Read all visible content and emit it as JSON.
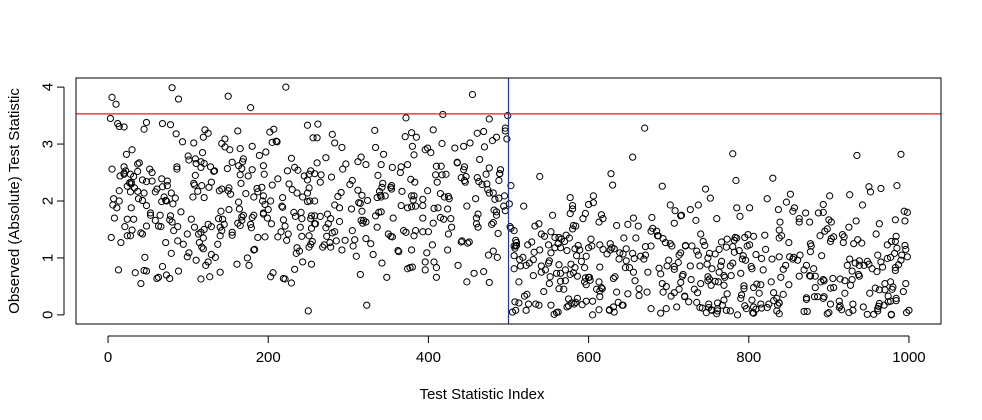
{
  "chart_data": {
    "type": "scatter",
    "title": "",
    "xlabel": "Test Statistic Index",
    "ylabel": "Observed (Absolute) Test Statistic",
    "xlim": [
      -40,
      1040
    ],
    "ylim": [
      -0.16,
      4.16
    ],
    "x_ticks": [
      0,
      200,
      400,
      600,
      800,
      1000
    ],
    "y_ticks": [
      0,
      1,
      2,
      3,
      4
    ],
    "x_tick_labels": [
      "0",
      "200",
      "400",
      "600",
      "800",
      "1000"
    ],
    "y_tick_labels": [
      "0",
      "1",
      "2",
      "3",
      "4"
    ],
    "grid": false,
    "legend": "none",
    "marker": "open-circle",
    "reference_lines": [
      {
        "orientation": "horizontal",
        "value": 3.53,
        "color": "#e8191f"
      },
      {
        "orientation": "vertical",
        "value": 500,
        "color": "#1f2fd6"
      }
    ],
    "series": [
      {
        "color": "#000000",
        "points": [
          {
            "x": 3,
            "y": 3.45
          },
          {
            "x": 5,
            "y": 3.82
          },
          {
            "x": 10,
            "y": 3.7
          },
          {
            "x": 80,
            "y": 3.99
          },
          {
            "x": 88,
            "y": 3.79
          },
          {
            "x": 150,
            "y": 3.84
          },
          {
            "x": 178,
            "y": 3.64
          },
          {
            "x": 222,
            "y": 4.0
          },
          {
            "x": 455,
            "y": 3.87
          },
          {
            "x": 12,
            "y": 3.36
          },
          {
            "x": 20,
            "y": 3.3
          },
          {
            "x": 45,
            "y": 3.26
          },
          {
            "x": 372,
            "y": 3.46
          },
          {
            "x": 418,
            "y": 3.52
          },
          {
            "x": 476,
            "y": 3.44
          },
          {
            "x": 499,
            "y": 3.5
          },
          {
            "x": 250,
            "y": 0.07
          },
          {
            "x": 323,
            "y": 0.17
          },
          {
            "x": 501,
            "y": 1.95
          },
          {
            "x": 502,
            "y": 1.55
          },
          {
            "x": 503,
            "y": 2.27
          },
          {
            "x": 670,
            "y": 3.28
          },
          {
            "x": 655,
            "y": 2.77
          },
          {
            "x": 780,
            "y": 2.83
          },
          {
            "x": 935,
            "y": 2.8
          },
          {
            "x": 990,
            "y": 2.82
          },
          {
            "x": 505,
            "y": 0.05
          },
          {
            "x": 560,
            "y": 0.04
          },
          {
            "x": 690,
            "y": 0.03
          },
          {
            "x": 760,
            "y": 0.02
          },
          {
            "x": 900,
            "y": 0.04
          },
          {
            "x": 1000,
            "y": 0.08
          }
        ],
        "generated_points": {
          "rule": "seeded-random",
          "seed": 20240611,
          "segments": [
            {
              "x_range": [
                1,
                500
              ],
              "count": 484,
              "y_range": [
                0.5,
                3.4
              ],
              "center": 1.95
            },
            {
              "x_range": [
                501,
                1000
              ],
              "count": 484,
              "y_range": [
                0.0,
                2.5
              ],
              "center": 0.9
            }
          ]
        }
      }
    ]
  }
}
